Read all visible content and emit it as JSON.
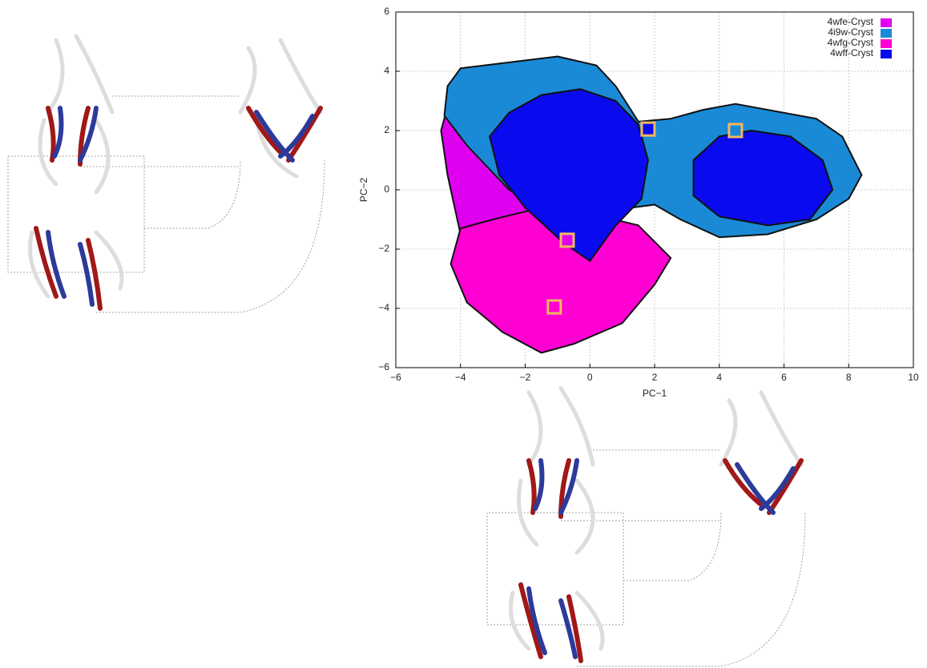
{
  "chart_data": {
    "type": "scatter",
    "xlabel": "PC−1",
    "ylabel": "PC−2",
    "xlim": [
      -6,
      10
    ],
    "ylim": [
      -6,
      6
    ],
    "xticks": [
      {
        "value": -6,
        "label": "−6"
      },
      {
        "value": -4,
        "label": "−4"
      },
      {
        "value": -2,
        "label": "−2"
      },
      0,
      2,
      4,
      6,
      8,
      10
    ],
    "yticks": [
      {
        "value": -6,
        "label": "−6"
      },
      {
        "value": -4,
        "label": "−4"
      },
      {
        "value": -2,
        "label": "−2"
      },
      0,
      2,
      4,
      6
    ],
    "grid": true,
    "legend": "upper right",
    "series": [
      {
        "name": "4wfe-Cryst",
        "color": "#e000f0",
        "x": [
          -4.3,
          -3.5,
          -3,
          -2.2,
          -1.8,
          -1.2,
          -2.5,
          -3.5,
          -4,
          -4.4,
          -4.6
        ],
        "y": [
          3.2,
          2.8,
          2,
          1,
          -0.5,
          -1.5,
          -1.8,
          -2.2,
          -1.5,
          0.5,
          2
        ],
        "crystal_x": -0.7,
        "crystal_y": -1.7
      },
      {
        "name": "4i9w-Cryst",
        "color": "#1a8ad6",
        "x": [
          -4.4,
          -4,
          -2.5,
          -1,
          0.2,
          0.8,
          1.5,
          2.5,
          3.5,
          4.5,
          5.5,
          7,
          7.8,
          8.4,
          8,
          7,
          5.5,
          4,
          2.8,
          2,
          1.3,
          0.5,
          -1,
          -2.5,
          -3.8,
          -4.5
        ],
        "y": [
          3.5,
          4.1,
          4.3,
          4.5,
          4.2,
          3.5,
          2.3,
          2.4,
          2.7,
          2.9,
          2.7,
          2.4,
          1.8,
          0.5,
          -0.3,
          -1,
          -1.5,
          -1.6,
          -1,
          -0.5,
          -0.6,
          -1,
          -0.8,
          0,
          1.5,
          2.5
        ],
        "crystal_x": 4.5,
        "crystal_y": 2.0
      },
      {
        "name": "4wfg-Cryst",
        "color": "#ff00d2",
        "x": [
          -4,
          -3,
          -1.5,
          0,
          1.5,
          2.5,
          2,
          1,
          -0.5,
          -1.5,
          -2.7,
          -3.8,
          -4.3
        ],
        "y": [
          -1.3,
          -1,
          -0.6,
          -0.8,
          -1.2,
          -2.3,
          -3.2,
          -4.5,
          -5.2,
          -5.5,
          -4.8,
          -3.8,
          -2.5
        ],
        "crystal_x": -1.1,
        "crystal_y": -3.95
      },
      {
        "name": "4wff-Cryst",
        "color": "#0a0aee",
        "x": [
          -3.1,
          -2.5,
          -1.5,
          -0.3,
          0.8,
          1.5,
          1.8,
          1.6,
          0.8,
          0,
          -0.8,
          -2,
          -2.8,
          null,
          3.2,
          4,
          5,
          6.2,
          7.2,
          7.5,
          6.8,
          5.5,
          4,
          3.2
        ],
        "y": [
          1.8,
          2.6,
          3.2,
          3.4,
          3,
          2.2,
          1,
          -0.3,
          -1.2,
          -2.4,
          -1.8,
          -0.6,
          0.5,
          null,
          1,
          1.8,
          2,
          1.8,
          1,
          0,
          -1,
          -1.2,
          -0.9,
          -0.2
        ],
        "crystal_x": 1.8,
        "crystal_y": 2.05
      }
    ]
  }
}
